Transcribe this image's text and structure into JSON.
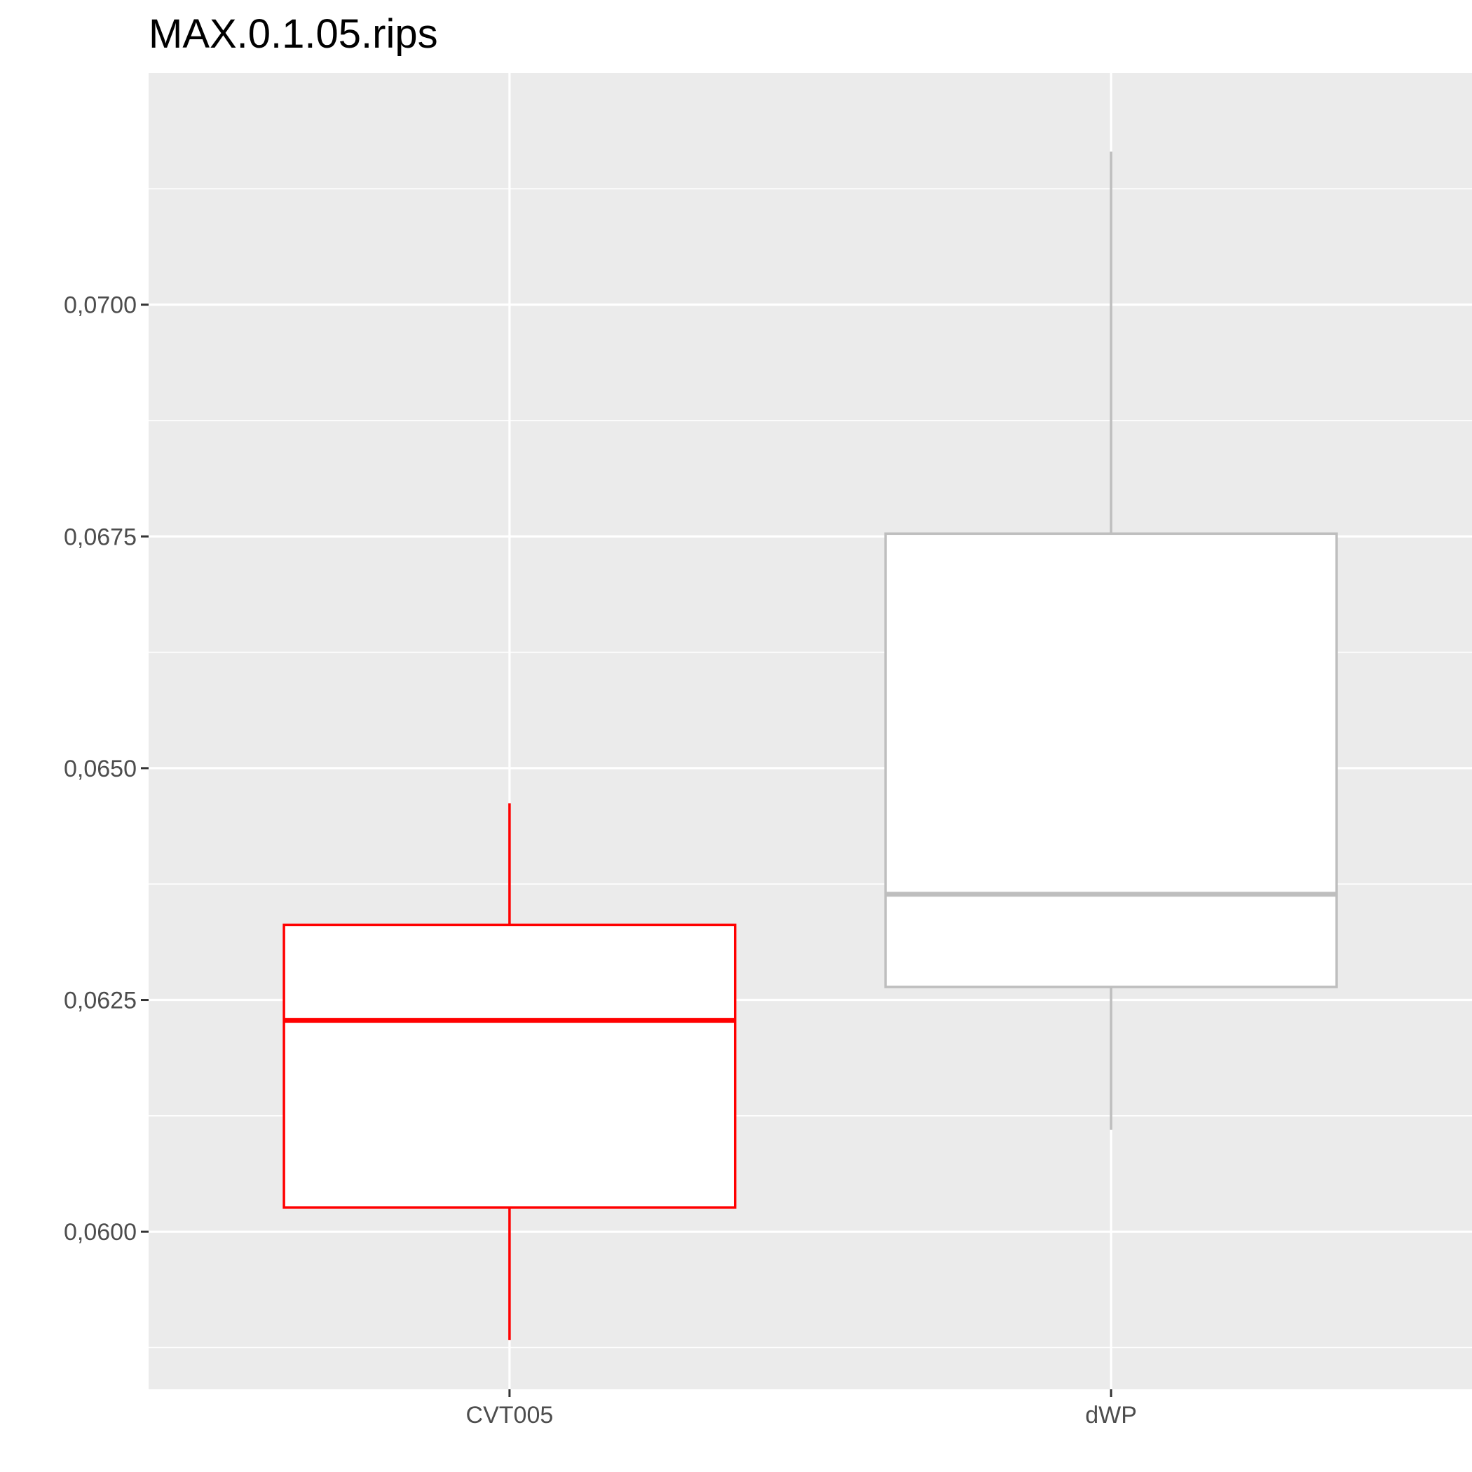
{
  "chart_data": {
    "type": "boxplot",
    "title": "MAX.0.1.05.rips",
    "xlabel": "",
    "ylabel": "",
    "categories": [
      "CVT005",
      "dWP"
    ],
    "ylim": [
      0.0583,
      0.0725
    ],
    "y_ticks": [
      0.06,
      0.0625,
      0.065,
      0.0675,
      0.07
    ],
    "y_tick_labels": [
      "0,0600",
      "0,0625",
      "0,0650",
      "0,0675",
      "0,0700"
    ],
    "grid": true,
    "series": [
      {
        "category": "CVT005",
        "color": "#ff0000",
        "whisker_low": 0.05883,
        "q1": 0.06026,
        "median": 0.06228,
        "q3": 0.06331,
        "whisker_high": 0.06462
      },
      {
        "category": "dWP",
        "color": "#bebebe",
        "whisker_low": 0.0611,
        "q1": 0.06264,
        "median": 0.06364,
        "q3": 0.06753,
        "whisker_high": 0.07165
      }
    ],
    "panel_background": "#ebebeb",
    "grid_color": "#ffffff",
    "box_fill": "#ffffff"
  }
}
